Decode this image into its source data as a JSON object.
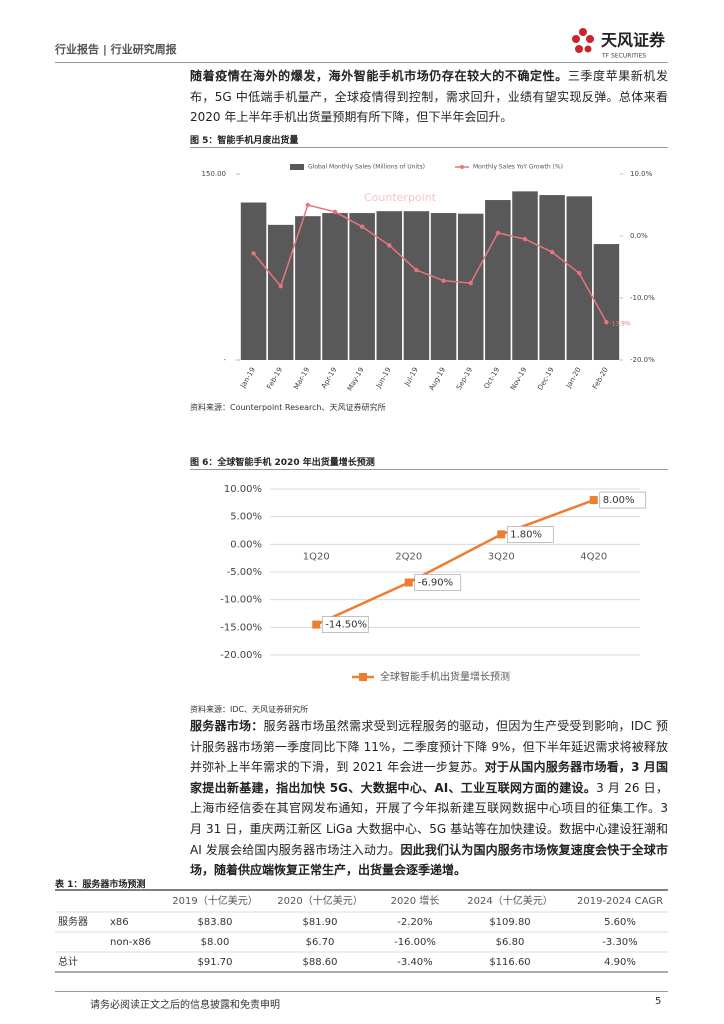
{
  "header": {
    "left": "行业报告 | 行业研究周报",
    "brand": "天风证券",
    "brand_en": "TF SECURITIES"
  },
  "paragraphs": [
    {
      "runs": [
        {
          "text": "随着疫情在海外的爆发，海外智能手机市场仍存在较大的不确定性。",
          "bold": true
        },
        {
          "text": "三季度苹果新机发布，5G 中低端手机量产，全球疫情得到控制，需求回升，业绩有望实现反弹。总体来看 2020 年上半年手机出货量预期有所下降，但下半年会回升。",
          "bold": false
        }
      ]
    },
    {
      "runs": [
        {
          "text": "服务器市场：",
          "bold": true
        },
        {
          "text": "服务器市场虽然需求受到远程服务的驱动，但因为生产受受到影响，IDC 预计服务器市场第一季度同比下降 11%，二季度预计下降 9%，但下半年延迟需求将被释放并弥补上半年需求的下滑，到 2021 年会进一步复苏。",
          "bold": false
        },
        {
          "text": "对于从国内服务器市场看，3 月国家提出新基建，指出加快 5G、大数据中心、AI、工业互联网方面的建设。",
          "bold": true
        },
        {
          "text": "3 月 26 日，上海市经信委在其官网发布通知，开展了今年拟新建互联网数据中心项目的征集工作。3 月 31 日，重庆两江新区 LiGa 大数据中心、5G 基站等在加快建设。数据中心建设狂潮和 AI 发展会给国内服务器市场注入动力。",
          "bold": false
        },
        {
          "text": "因此我们认为国内服务市场恢复速度会快于全球市场，随着供应端恢复正常生产，出货量会逐季递增。",
          "bold": true
        }
      ]
    }
  ],
  "figures": [
    {
      "caption": "图 5：智能手机月度出货量",
      "source": "资料来源：Counterpoint Research、天风证券研究所"
    },
    {
      "caption": "图 6：全球智能手机 2020 年出货量增长预测",
      "source": "资料来源：IDC、天风证券研究所"
    }
  ],
  "chart_data": [
    {
      "type": "bar",
      "watermark": "Counterpoint",
      "categories": [
        "Jan-19",
        "Feb-19",
        "Mar-19",
        "Apr-19",
        "May-19",
        "Jun-19",
        "Jul-19",
        "Aug-19",
        "Sep-19",
        "Oct-19",
        "Nov-19",
        "Dec-19",
        "Jan-20",
        "Feb-20"
      ],
      "series": [
        {
          "name": "Global Monthly Sales (Millions of Units)",
          "type": "bar",
          "color": "#595959",
          "values": [
            127,
            109,
            116,
            118.5,
            118.5,
            120,
            120,
            118.5,
            118,
            129,
            136,
            133,
            132,
            93.5
          ]
        },
        {
          "name": "Monthly Sales YoY Growth (%)",
          "type": "line",
          "axis": "y2",
          "color": "#e8747c",
          "values": [
            -2.8,
            -8.1,
            5.0,
            3.9,
            1.5,
            -1.5,
            -5.5,
            -7.2,
            -7.6,
            0.5,
            -0.5,
            -2.6,
            -6.0,
            -13.9
          ],
          "value_labels": [
            null,
            null,
            null,
            null,
            null,
            null,
            null,
            null,
            null,
            null,
            null,
            null,
            null,
            "-13.9%"
          ]
        }
      ],
      "ylim": [
        0,
        150
      ],
      "yticks": [
        {
          "value": 0,
          "label": "-"
        },
        {
          "value": 150,
          "label": "150.00"
        }
      ],
      "y2lim": [
        -20,
        10
      ],
      "y2ticks": [
        {
          "value": 10,
          "label": "10.0%"
        },
        {
          "value": 0,
          "label": "0.0%"
        },
        {
          "value": -10,
          "label": "-10.0%"
        },
        {
          "value": -20,
          "label": "-20.0%"
        }
      ],
      "grid": false,
      "legend": "top"
    },
    {
      "type": "line",
      "categories": [
        "1Q20",
        "2Q20",
        "3Q20",
        "4Q20"
      ],
      "series": [
        {
          "name": "全球智能手机出货量增长预测",
          "type": "line",
          "color": "#ed7d31",
          "values": [
            -14.5,
            -6.9,
            1.8,
            8.0
          ],
          "value_labels": [
            "-14.50%",
            "-6.90%",
            "1.80%",
            "8.00%"
          ]
        }
      ],
      "ylim": [
        -20,
        10
      ],
      "yticks": [
        {
          "value": 10,
          "label": "10.00%"
        },
        {
          "value": 5,
          "label": "5.00%"
        },
        {
          "value": 0,
          "label": "0.00%"
        },
        {
          "value": -5,
          "label": "-5.00%"
        },
        {
          "value": -10,
          "label": "-10.00%"
        },
        {
          "value": -15,
          "label": "-15.00%"
        },
        {
          "value": -20,
          "label": "-20.00%"
        }
      ],
      "grid": true,
      "legend": "bottom"
    }
  ],
  "table": {
    "caption": "表 1：服务器市场预测",
    "header": [
      "2019（十亿美元）",
      "2020（十亿美元）",
      "2020 增长",
      "2024（十亿美元）",
      "2019-2024 CAGR"
    ],
    "rows": [
      {
        "label": "服务器",
        "sub": "x86",
        "cells": [
          "$83.80",
          "$81.90",
          "-2.20%",
          "$109.80",
          "5.60%"
        ]
      },
      {
        "sub": "non-x86",
        "cells": [
          "$8.00",
          "$6.70",
          "-16.00%",
          "$6.80",
          "-3.30%"
        ]
      },
      {
        "label": "总计",
        "cells": [
          "$91.70",
          "$88.60",
          "-3.40%",
          "$116.60",
          "4.90%"
        ]
      }
    ]
  },
  "footer": {
    "text": "请务必阅读正文之后的信息披露和免责申明",
    "page": 5
  }
}
